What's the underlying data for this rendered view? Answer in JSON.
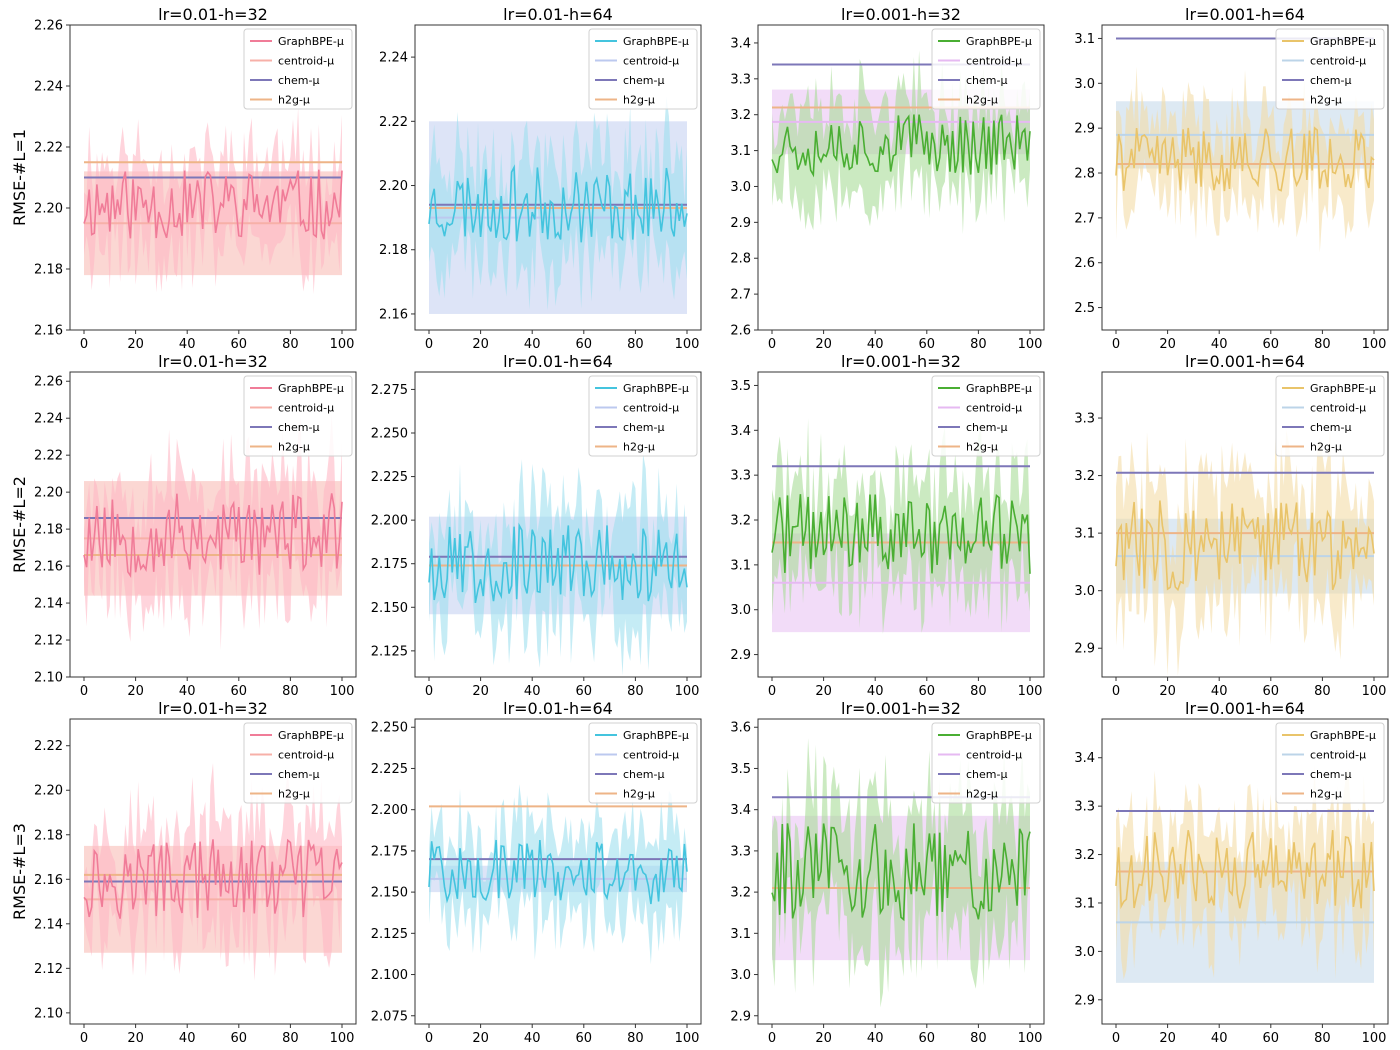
{
  "colors": {
    "pink": "#f07c98",
    "pink_light": "#ffb7c5",
    "salmon": "#f7b0a8",
    "cyan": "#44c4de",
    "cyan_light": "#9fe0ef",
    "lavender_blue": "#bcc9ef",
    "green": "#4aae33",
    "green_light": "#a9dc98",
    "violet_light": "#e6b9f2",
    "gold": "#e9c46a",
    "gold_light": "#f3dca6",
    "steel_light": "#bcd4e8",
    "chem": "#7d77b8",
    "h2g": "#eeb487"
  },
  "chart_data": [
    {
      "type": "line",
      "title": "lr=0.01-h=32",
      "ylabel": "RMSE-#L=1",
      "xlim": [
        0,
        100
      ],
      "ylim": [
        2.16,
        2.26
      ],
      "xticks": [
        0,
        20,
        40,
        60,
        80,
        100
      ],
      "yticks": [
        2.16,
        2.18,
        2.2,
        2.22,
        2.24,
        2.26
      ],
      "series": [
        {
          "name": "GraphBPE-μ",
          "mean": 2.201,
          "band": 0.013,
          "color": "pink",
          "fill": "pink_light"
        },
        {
          "name": "centroid-μ",
          "mean": 2.195,
          "band": 0.017,
          "color": "salmon",
          "fill": "salmon"
        },
        {
          "name": "chem-μ",
          "mean": 2.21,
          "color": "chem"
        },
        {
          "name": "h2g-μ",
          "mean": 2.215,
          "color": "h2g"
        }
      ],
      "seed": 11
    },
    {
      "type": "line",
      "title": "lr=0.01-h=64",
      "ylabel": "",
      "xlim": [
        0,
        100
      ],
      "ylim": [
        2.155,
        2.25
      ],
      "xticks": [
        0,
        20,
        40,
        60,
        80,
        100
      ],
      "yticks": [
        2.16,
        2.18,
        2.2,
        2.22,
        2.24
      ],
      "series": [
        {
          "name": "GraphBPE-μ",
          "mean": 2.194,
          "band": 0.013,
          "color": "cyan",
          "fill": "cyan_light"
        },
        {
          "name": "centroid-μ",
          "mean": 2.19,
          "band": 0.03,
          "color": "lavender_blue",
          "fill": "lavender_blue"
        },
        {
          "name": "chem-μ",
          "mean": 2.194,
          "color": "chem"
        },
        {
          "name": "h2g-μ",
          "mean": 2.193,
          "color": "h2g"
        }
      ],
      "seed": 23
    },
    {
      "type": "line",
      "title": "lr=0.001-h=32",
      "ylabel": "",
      "xlim": [
        0,
        100
      ],
      "ylim": [
        2.6,
        3.45
      ],
      "xticks": [
        0,
        20,
        40,
        60,
        80,
        100
      ],
      "yticks": [
        2.6,
        2.7,
        2.8,
        2.9,
        3.0,
        3.1,
        3.2,
        3.3,
        3.4
      ],
      "series": [
        {
          "name": "GraphBPE-μ",
          "mean": 3.12,
          "band": 0.1,
          "color": "green",
          "fill": "green_light"
        },
        {
          "name": "centroid-μ",
          "mean": 3.18,
          "band": 0.09,
          "color": "violet_light",
          "fill": "violet_light"
        },
        {
          "name": "chem-μ",
          "mean": 3.34,
          "color": "chem"
        },
        {
          "name": "h2g-μ",
          "mean": 3.22,
          "color": "h2g"
        }
      ],
      "seed": 37
    },
    {
      "type": "line",
      "title": "lr=0.001-h=64",
      "ylabel": "",
      "xlim": [
        0,
        100
      ],
      "ylim": [
        2.45,
        3.13
      ],
      "xticks": [
        0,
        20,
        40,
        60,
        80,
        100
      ],
      "yticks": [
        2.5,
        2.6,
        2.7,
        2.8,
        2.9,
        3.0,
        3.1
      ],
      "series": [
        {
          "name": "GraphBPE-μ",
          "mean": 2.83,
          "band": 0.08,
          "color": "gold",
          "fill": "gold_light"
        },
        {
          "name": "centroid-μ",
          "mean": 2.885,
          "band": 0.075,
          "color": "steel_light",
          "fill": "steel_light"
        },
        {
          "name": "chem-μ",
          "mean": 3.1,
          "color": "chem"
        },
        {
          "name": "h2g-μ",
          "mean": 2.82,
          "color": "h2g"
        }
      ],
      "seed": 41
    },
    {
      "type": "line",
      "title": "lr=0.01-h=32",
      "ylabel": "RMSE-#L=2",
      "xlim": [
        0,
        100
      ],
      "ylim": [
        2.1,
        2.265
      ],
      "xticks": [
        0,
        20,
        40,
        60,
        80,
        100
      ],
      "yticks": [
        2.1,
        2.12,
        2.14,
        2.16,
        2.18,
        2.2,
        2.22,
        2.24,
        2.26
      ],
      "series": [
        {
          "name": "GraphBPE-μ",
          "mean": 2.177,
          "band": 0.025,
          "color": "pink",
          "fill": "pink_light"
        },
        {
          "name": "centroid-μ",
          "mean": 2.175,
          "band": 0.031,
          "color": "salmon",
          "fill": "salmon"
        },
        {
          "name": "chem-μ",
          "mean": 2.186,
          "color": "chem"
        },
        {
          "name": "h2g-μ",
          "mean": 2.166,
          "color": "h2g"
        }
      ],
      "seed": 53
    },
    {
      "type": "line",
      "title": "lr=0.01-h=64",
      "ylabel": "",
      "xlim": [
        0,
        100
      ],
      "ylim": [
        2.11,
        2.285
      ],
      "xticks": [
        0,
        20,
        40,
        60,
        80,
        100
      ],
      "yticks": [
        2.125,
        2.15,
        2.175,
        2.2,
        2.225,
        2.25,
        2.275
      ],
      "series": [
        {
          "name": "GraphBPE-μ",
          "mean": 2.175,
          "band": 0.025,
          "color": "cyan",
          "fill": "cyan_light"
        },
        {
          "name": "centroid-μ",
          "mean": 2.174,
          "band": 0.028,
          "color": "lavender_blue",
          "fill": "lavender_blue"
        },
        {
          "name": "chem-μ",
          "mean": 2.179,
          "color": "chem"
        },
        {
          "name": "h2g-μ",
          "mean": 2.174,
          "color": "h2g"
        }
      ],
      "seed": 67
    },
    {
      "type": "line",
      "title": "lr=0.001-h=32",
      "ylabel": "",
      "xlim": [
        0,
        100
      ],
      "ylim": [
        2.85,
        3.53
      ],
      "xticks": [
        0,
        20,
        40,
        60,
        80,
        100
      ],
      "yticks": [
        2.9,
        3.0,
        3.1,
        3.2,
        3.3,
        3.4,
        3.5
      ],
      "series": [
        {
          "name": "GraphBPE-μ",
          "mean": 3.17,
          "band": 0.1,
          "color": "green",
          "fill": "green_light"
        },
        {
          "name": "centroid-μ",
          "mean": 3.06,
          "band": 0.11,
          "color": "violet_light",
          "fill": "violet_light"
        },
        {
          "name": "chem-μ",
          "mean": 3.32,
          "color": "chem"
        },
        {
          "name": "h2g-μ",
          "mean": 3.15,
          "color": "h2g"
        }
      ],
      "seed": 71
    },
    {
      "type": "line",
      "title": "lr=0.001-h=64",
      "ylabel": "",
      "xlim": [
        0,
        100
      ],
      "ylim": [
        2.85,
        3.38
      ],
      "xticks": [
        0,
        20,
        40,
        60,
        80,
        100
      ],
      "yticks": [
        2.9,
        3.0,
        3.1,
        3.2,
        3.3
      ],
      "series": [
        {
          "name": "GraphBPE-μ",
          "mean": 3.08,
          "band": 0.09,
          "color": "gold",
          "fill": "gold_light"
        },
        {
          "name": "centroid-μ",
          "mean": 3.06,
          "band": 0.065,
          "color": "steel_light",
          "fill": "steel_light"
        },
        {
          "name": "chem-μ",
          "mean": 3.205,
          "color": "chem"
        },
        {
          "name": "h2g-μ",
          "mean": 3.1,
          "color": "h2g"
        }
      ],
      "seed": 83
    },
    {
      "type": "line",
      "title": "lr=0.01-h=32",
      "ylabel": "RMSE-#L=3",
      "xlim": [
        0,
        100
      ],
      "ylim": [
        2.095,
        2.232
      ],
      "xticks": [
        0,
        20,
        40,
        60,
        80,
        100
      ],
      "yticks": [
        2.1,
        2.12,
        2.14,
        2.16,
        2.18,
        2.2,
        2.22
      ],
      "series": [
        {
          "name": "GraphBPE-μ",
          "mean": 2.16,
          "band": 0.02,
          "color": "pink",
          "fill": "pink_light"
        },
        {
          "name": "centroid-μ",
          "mean": 2.151,
          "band": 0.024,
          "color": "salmon",
          "fill": "salmon"
        },
        {
          "name": "chem-μ",
          "mean": 2.159,
          "color": "chem"
        },
        {
          "name": "h2g-μ",
          "mean": 2.162,
          "color": "h2g"
        }
      ],
      "seed": 97
    },
    {
      "type": "line",
      "title": "lr=0.01-h=64",
      "ylabel": "",
      "xlim": [
        0,
        100
      ],
      "ylim": [
        2.07,
        2.255
      ],
      "xticks": [
        0,
        20,
        40,
        60,
        80,
        100
      ],
      "yticks": [
        2.075,
        2.1,
        2.125,
        2.15,
        2.175,
        2.2,
        2.225,
        2.25
      ],
      "series": [
        {
          "name": "GraphBPE-μ",
          "mean": 2.162,
          "band": 0.022,
          "color": "cyan",
          "fill": "cyan_light"
        },
        {
          "name": "centroid-μ",
          "mean": 2.158,
          "band": 0.008,
          "color": "lavender_blue",
          "fill": "lavender_blue"
        },
        {
          "name": "chem-μ",
          "mean": 2.17,
          "color": "chem"
        },
        {
          "name": "h2g-μ",
          "mean": 2.202,
          "color": "h2g"
        }
      ],
      "seed": 101
    },
    {
      "type": "line",
      "title": "lr=0.001-h=32",
      "ylabel": "",
      "xlim": [
        0,
        100
      ],
      "ylim": [
        2.88,
        3.62
      ],
      "xticks": [
        0,
        20,
        40,
        60,
        80,
        100
      ],
      "yticks": [
        2.9,
        3.0,
        3.1,
        3.2,
        3.3,
        3.4,
        3.5,
        3.6
      ],
      "series": [
        {
          "name": "GraphBPE-μ",
          "mean": 3.25,
          "band": 0.13,
          "color": "green",
          "fill": "green_light"
        },
        {
          "name": "centroid-μ",
          "mean": 3.21,
          "band": 0.175,
          "color": "violet_light",
          "fill": "violet_light"
        },
        {
          "name": "chem-μ",
          "mean": 3.43,
          "color": "chem"
        },
        {
          "name": "h2g-μ",
          "mean": 3.21,
          "color": "h2g"
        }
      ],
      "seed": 113
    },
    {
      "type": "line",
      "title": "lr=0.001-h=64",
      "ylabel": "",
      "xlim": [
        0,
        100
      ],
      "ylim": [
        2.85,
        3.48
      ],
      "xticks": [
        0,
        20,
        40,
        60,
        80,
        100
      ],
      "yticks": [
        2.9,
        3.0,
        3.1,
        3.2,
        3.3,
        3.4
      ],
      "series": [
        {
          "name": "GraphBPE-μ",
          "mean": 3.17,
          "band": 0.09,
          "color": "gold",
          "fill": "gold_light"
        },
        {
          "name": "centroid-μ",
          "mean": 3.06,
          "band": 0.125,
          "color": "steel_light",
          "fill": "steel_light"
        },
        {
          "name": "chem-μ",
          "mean": 3.29,
          "color": "chem"
        },
        {
          "name": "h2g-μ",
          "mean": 3.165,
          "color": "h2g"
        }
      ],
      "seed": 127
    }
  ]
}
